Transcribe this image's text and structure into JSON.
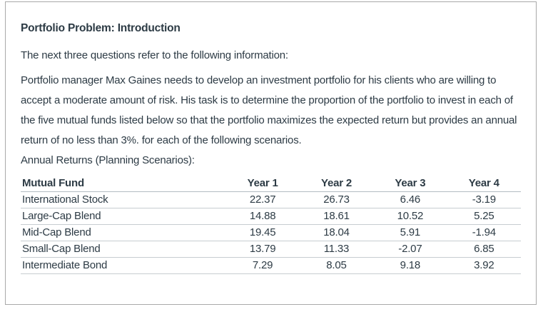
{
  "page": {
    "title": "Portfolio Problem: Introduction",
    "intro": "The next three questions refer to the following information:",
    "description": "Portfolio manager Max Gaines needs to develop an investment portfolio for his clients who are willing to accept a moderate amount of risk. His task is to determine the proportion of the portfolio to invest in each of the five mutual funds listed below so that the portfolio maximizes the expected return but provides an annual return of no less than 3%. for each of the following scenarios.",
    "table_caption": "Annual Returns (Planning Scenarios):"
  },
  "table": {
    "headers": [
      "Mutual Fund",
      "Year 1",
      "Year 2",
      "Year 3",
      "Year 4"
    ],
    "rows": [
      {
        "fund": "International Stock",
        "values": [
          "22.37",
          "26.73",
          "6.46",
          "-3.19"
        ]
      },
      {
        "fund": "Large-Cap Blend",
        "values": [
          "14.88",
          "18.61",
          "10.52",
          "5.25"
        ]
      },
      {
        "fund": "Mid-Cap Blend",
        "values": [
          "19.45",
          "18.04",
          "5.91",
          "-1.94"
        ]
      },
      {
        "fund": "Small-Cap Blend",
        "values": [
          "13.79",
          "11.33",
          "-2.07",
          "6.85"
        ]
      },
      {
        "fund": "Intermediate Bond",
        "values": [
          "7.29",
          "8.05",
          "9.18",
          "3.92"
        ]
      }
    ]
  },
  "colors": {
    "text": "#2D3B45",
    "divider": "#C7CDD1",
    "header_divider": "#B3BCC2",
    "card_border": "#A9A9A9",
    "background": "#FFFFFF"
  }
}
